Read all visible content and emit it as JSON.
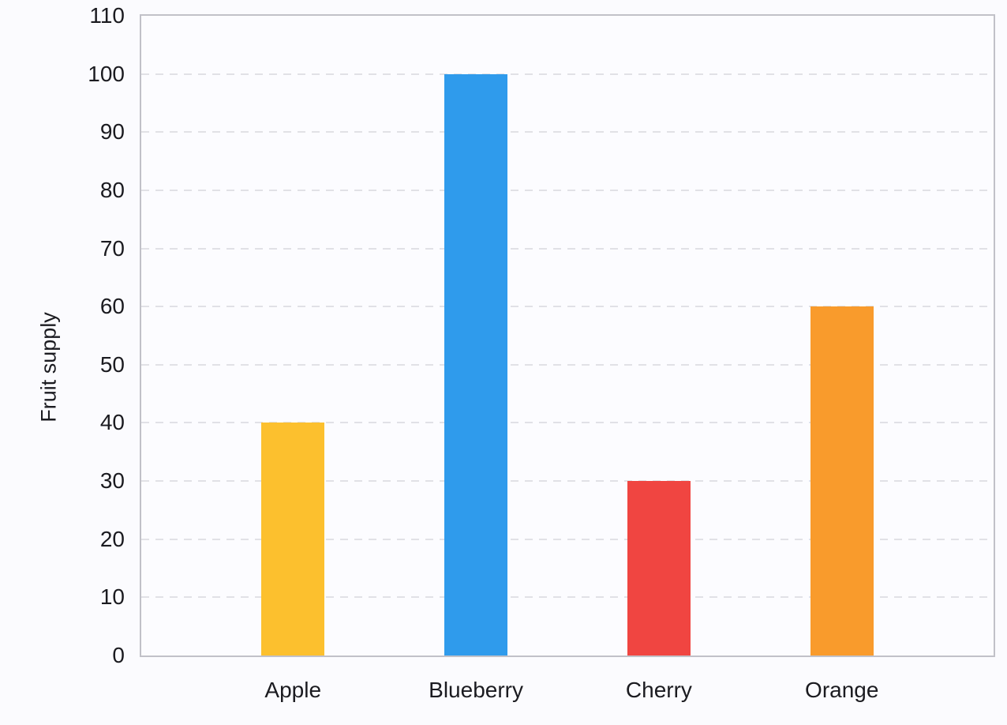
{
  "chart_data": {
    "type": "bar",
    "categories": [
      "Apple",
      "Blueberry",
      "Cherry",
      "Orange"
    ],
    "values": [
      40,
      100,
      30,
      60
    ],
    "bar_colors": [
      "#FCC02E",
      "#2F9BEC",
      "#F04541",
      "#F99B2C"
    ],
    "title": "",
    "xlabel": "",
    "ylabel": "Fruit supply",
    "ylim": [
      0,
      110
    ],
    "ytick_step": 10,
    "yticks": [
      0,
      10,
      20,
      30,
      40,
      50,
      60,
      70,
      80,
      90,
      100,
      110
    ],
    "grid": "horizontal-dashed",
    "legend": "none",
    "plot_border": "full-box"
  },
  "colors": {
    "background": "#FBFBFE",
    "plot_background": "#FCFCFF",
    "plot_border": "#C1C1C8",
    "gridline": "#E1E1E6",
    "text": "#1B1B20"
  }
}
